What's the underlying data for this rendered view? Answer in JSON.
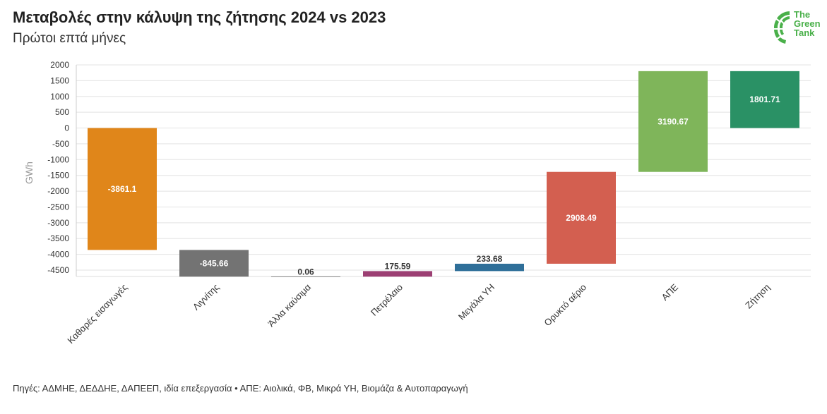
{
  "title": "Μεταβολές στην κάλυψη της ζήτησης 2024 vs 2023",
  "subtitle": "Πρώτοι επτά μήνες",
  "source": "Πηγές: ΑΔΜΗΕ, ΔΕΔΔΗΕ, ΔΑΠΕΕΠ, ιδία επεξεργασία • ΑΠΕ: Αιολικά, ΦΒ, Μικρά ΥΗ, Βιομάζα & Αυτοπαραγωγή",
  "logo": {
    "line1": "The",
    "line2": "Green",
    "line3": "Tank",
    "color": "#4ab04a"
  },
  "chart_data": {
    "type": "waterfall",
    "ylabel": "GWh",
    "ylim": [
      -4700,
      2000
    ],
    "yticks": [
      2000,
      1500,
      1000,
      500,
      0,
      -500,
      -1000,
      -1500,
      -2000,
      -2500,
      -3000,
      -3500,
      -4000,
      -4500
    ],
    "grid": true,
    "bars": [
      {
        "category": "Καθαρές εισαγωγές",
        "start": 0,
        "end": -3861.1,
        "label": "-3861.1",
        "color": "#e0861a",
        "label_inside": true
      },
      {
        "category": "Λιγνίτης",
        "start": -3861.1,
        "end": -4706.76,
        "label": "-845.66",
        "color": "#737373",
        "label_inside": true
      },
      {
        "category": "Άλλα καύσιμα",
        "start": -4706.76,
        "end": -4706.7,
        "label": "0.06",
        "color": "#555555",
        "label_inside": false
      },
      {
        "category": "Πετρέλαιο",
        "start": -4706.7,
        "end": -4531.11,
        "label": "175.59",
        "color": "#9c3f73",
        "label_inside": false
      },
      {
        "category": "Μεγάλα ΥΗ",
        "start": -4531.11,
        "end": -4297.43,
        "label": "233.68",
        "color": "#2f6f99",
        "label_inside": false
      },
      {
        "category": "Ορυκτό αέριο",
        "start": -4297.43,
        "end": -1388.94,
        "label": "2908.49",
        "color": "#d35f50",
        "label_inside": true
      },
      {
        "category": "ΑΠΕ",
        "start": -1388.94,
        "end": 1801.73,
        "label": "3190.67",
        "color": "#7fb55a",
        "label_inside": true
      },
      {
        "category": "Ζήτηση",
        "start": 0,
        "end": 1801.71,
        "label": "1801.71",
        "color": "#2a9165",
        "label_inside": true
      }
    ]
  }
}
